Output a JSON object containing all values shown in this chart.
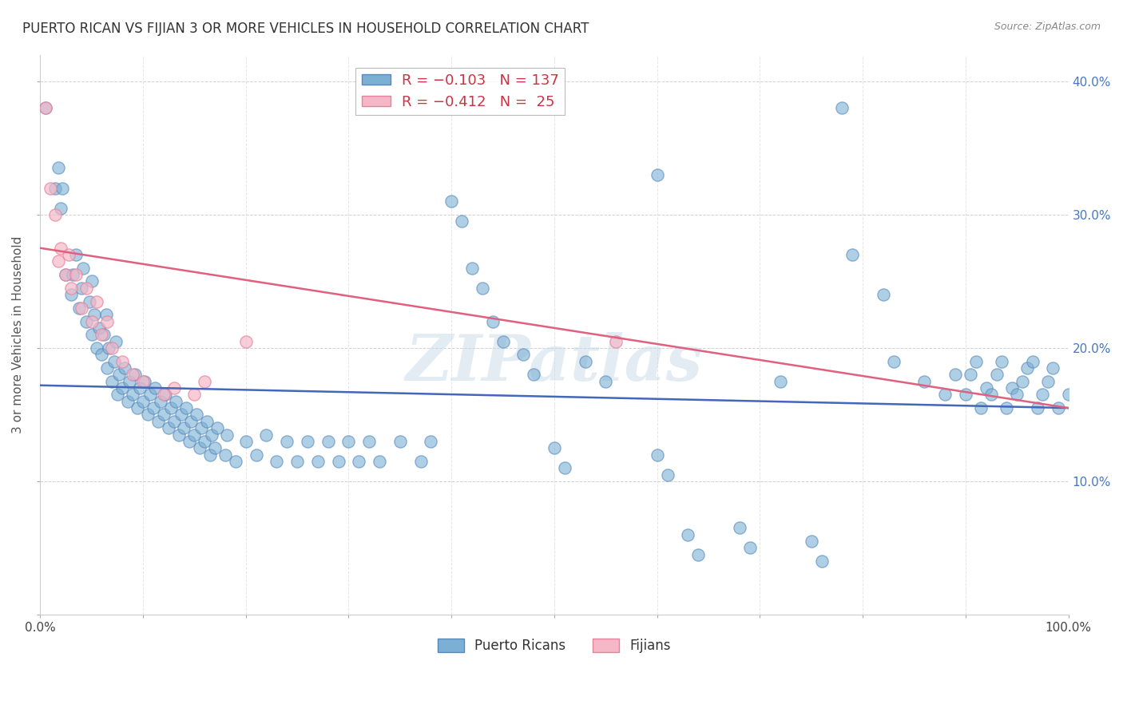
{
  "title": "PUERTO RICAN VS FIJIAN 3 OR MORE VEHICLES IN HOUSEHOLD CORRELATION CHART",
  "source": "Source: ZipAtlas.com",
  "ylabel": "3 or more Vehicles in Household",
  "watermark": "ZIPatlas",
  "xlim": [
    0,
    1.0
  ],
  "ylim": [
    0,
    0.42
  ],
  "pr_color": "#7bafd4",
  "pr_edge_color": "#5588bb",
  "fj_color": "#f4b8c8",
  "fj_edge_color": "#e8809a",
  "pr_line_color": "#4466bb",
  "fj_line_color": "#e06080",
  "background_color": "#ffffff",
  "pr_scatter": [
    [
      0.005,
      0.38
    ],
    [
      0.015,
      0.32
    ],
    [
      0.018,
      0.335
    ],
    [
      0.02,
      0.305
    ],
    [
      0.022,
      0.32
    ],
    [
      0.025,
      0.255
    ],
    [
      0.03,
      0.24
    ],
    [
      0.032,
      0.255
    ],
    [
      0.035,
      0.27
    ],
    [
      0.038,
      0.23
    ],
    [
      0.04,
      0.245
    ],
    [
      0.042,
      0.26
    ],
    [
      0.045,
      0.22
    ],
    [
      0.048,
      0.235
    ],
    [
      0.05,
      0.25
    ],
    [
      0.05,
      0.21
    ],
    [
      0.053,
      0.225
    ],
    [
      0.055,
      0.2
    ],
    [
      0.057,
      0.215
    ],
    [
      0.06,
      0.195
    ],
    [
      0.062,
      0.21
    ],
    [
      0.064,
      0.225
    ],
    [
      0.065,
      0.185
    ],
    [
      0.067,
      0.2
    ],
    [
      0.07,
      0.175
    ],
    [
      0.072,
      0.19
    ],
    [
      0.074,
      0.205
    ],
    [
      0.075,
      0.165
    ],
    [
      0.077,
      0.18
    ],
    [
      0.08,
      0.17
    ],
    [
      0.082,
      0.185
    ],
    [
      0.085,
      0.16
    ],
    [
      0.087,
      0.175
    ],
    [
      0.09,
      0.165
    ],
    [
      0.092,
      0.18
    ],
    [
      0.095,
      0.155
    ],
    [
      0.097,
      0.17
    ],
    [
      0.1,
      0.16
    ],
    [
      0.102,
      0.175
    ],
    [
      0.105,
      0.15
    ],
    [
      0.107,
      0.165
    ],
    [
      0.11,
      0.155
    ],
    [
      0.112,
      0.17
    ],
    [
      0.115,
      0.145
    ],
    [
      0.117,
      0.16
    ],
    [
      0.12,
      0.15
    ],
    [
      0.122,
      0.165
    ],
    [
      0.125,
      0.14
    ],
    [
      0.127,
      0.155
    ],
    [
      0.13,
      0.145
    ],
    [
      0.132,
      0.16
    ],
    [
      0.135,
      0.135
    ],
    [
      0.137,
      0.15
    ],
    [
      0.14,
      0.14
    ],
    [
      0.142,
      0.155
    ],
    [
      0.145,
      0.13
    ],
    [
      0.147,
      0.145
    ],
    [
      0.15,
      0.135
    ],
    [
      0.152,
      0.15
    ],
    [
      0.155,
      0.125
    ],
    [
      0.157,
      0.14
    ],
    [
      0.16,
      0.13
    ],
    [
      0.162,
      0.145
    ],
    [
      0.165,
      0.12
    ],
    [
      0.167,
      0.135
    ],
    [
      0.17,
      0.125
    ],
    [
      0.172,
      0.14
    ],
    [
      0.18,
      0.12
    ],
    [
      0.182,
      0.135
    ],
    [
      0.19,
      0.115
    ],
    [
      0.2,
      0.13
    ],
    [
      0.21,
      0.12
    ],
    [
      0.22,
      0.135
    ],
    [
      0.23,
      0.115
    ],
    [
      0.24,
      0.13
    ],
    [
      0.25,
      0.115
    ],
    [
      0.26,
      0.13
    ],
    [
      0.27,
      0.115
    ],
    [
      0.28,
      0.13
    ],
    [
      0.29,
      0.115
    ],
    [
      0.3,
      0.13
    ],
    [
      0.31,
      0.115
    ],
    [
      0.32,
      0.13
    ],
    [
      0.33,
      0.115
    ],
    [
      0.35,
      0.13
    ],
    [
      0.37,
      0.115
    ],
    [
      0.38,
      0.13
    ],
    [
      0.4,
      0.31
    ],
    [
      0.41,
      0.295
    ],
    [
      0.42,
      0.26
    ],
    [
      0.43,
      0.245
    ],
    [
      0.44,
      0.22
    ],
    [
      0.45,
      0.205
    ],
    [
      0.47,
      0.195
    ],
    [
      0.48,
      0.18
    ],
    [
      0.5,
      0.125
    ],
    [
      0.51,
      0.11
    ],
    [
      0.53,
      0.19
    ],
    [
      0.55,
      0.175
    ],
    [
      0.6,
      0.12
    ],
    [
      0.61,
      0.105
    ],
    [
      0.63,
      0.06
    ],
    [
      0.64,
      0.045
    ],
    [
      0.68,
      0.065
    ],
    [
      0.69,
      0.05
    ],
    [
      0.72,
      0.175
    ],
    [
      0.75,
      0.055
    ],
    [
      0.76,
      0.04
    ],
    [
      0.6,
      0.33
    ],
    [
      0.78,
      0.38
    ],
    [
      0.79,
      0.27
    ],
    [
      0.82,
      0.24
    ],
    [
      0.83,
      0.19
    ],
    [
      0.86,
      0.175
    ],
    [
      0.88,
      0.165
    ],
    [
      0.89,
      0.18
    ],
    [
      0.9,
      0.165
    ],
    [
      0.905,
      0.18
    ],
    [
      0.91,
      0.19
    ],
    [
      0.915,
      0.155
    ],
    [
      0.92,
      0.17
    ],
    [
      0.925,
      0.165
    ],
    [
      0.93,
      0.18
    ],
    [
      0.935,
      0.19
    ],
    [
      0.94,
      0.155
    ],
    [
      0.945,
      0.17
    ],
    [
      0.95,
      0.165
    ],
    [
      0.955,
      0.175
    ],
    [
      0.96,
      0.185
    ],
    [
      0.965,
      0.19
    ],
    [
      0.97,
      0.155
    ],
    [
      0.975,
      0.165
    ],
    [
      0.98,
      0.175
    ],
    [
      0.985,
      0.185
    ],
    [
      0.99,
      0.155
    ],
    [
      1.0,
      0.165
    ]
  ],
  "fj_scatter": [
    [
      0.005,
      0.38
    ],
    [
      0.01,
      0.32
    ],
    [
      0.015,
      0.3
    ],
    [
      0.018,
      0.265
    ],
    [
      0.02,
      0.275
    ],
    [
      0.025,
      0.255
    ],
    [
      0.028,
      0.27
    ],
    [
      0.03,
      0.245
    ],
    [
      0.035,
      0.255
    ],
    [
      0.04,
      0.23
    ],
    [
      0.045,
      0.245
    ],
    [
      0.05,
      0.22
    ],
    [
      0.055,
      0.235
    ],
    [
      0.06,
      0.21
    ],
    [
      0.065,
      0.22
    ],
    [
      0.07,
      0.2
    ],
    [
      0.08,
      0.19
    ],
    [
      0.09,
      0.18
    ],
    [
      0.1,
      0.175
    ],
    [
      0.12,
      0.165
    ],
    [
      0.13,
      0.17
    ],
    [
      0.15,
      0.165
    ],
    [
      0.16,
      0.175
    ],
    [
      0.2,
      0.205
    ],
    [
      0.56,
      0.205
    ]
  ],
  "pr_line": {
    "x0": 0.0,
    "y0": 0.172,
    "x1": 1.0,
    "y1": 0.155
  },
  "fj_line": {
    "x0": 0.0,
    "y0": 0.275,
    "x1": 1.0,
    "y1": 0.155
  }
}
